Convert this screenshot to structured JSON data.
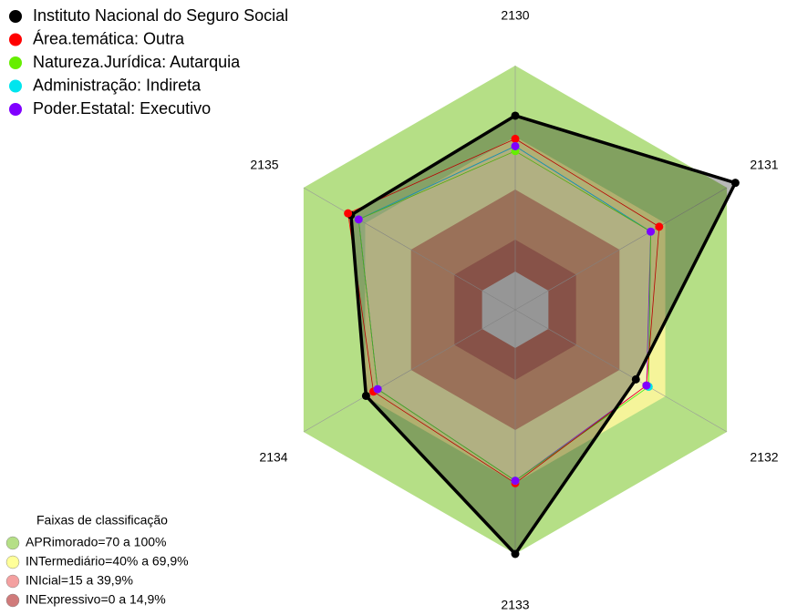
{
  "chart_data": {
    "type": "radar",
    "categories": [
      "2130",
      "2131",
      "2132",
      "2133",
      "2134",
      "2135"
    ],
    "rlim": [
      0,
      100
    ],
    "series": [
      {
        "name": "Instituto Nacional do Seguro Social",
        "color": "#000000",
        "values": [
          79.5,
          104,
          57,
          100,
          70.5,
          77.6
        ]
      },
      {
        "name": "Área.temática: Outra",
        "color": "#ff0000",
        "values": [
          70,
          68,
          62,
          71,
          67,
          79
        ]
      },
      {
        "name": "Natureza.Jurídica: Autarquia",
        "color": "#66ee00",
        "values": [
          65,
          64,
          63,
          70,
          65,
          74
        ]
      },
      {
        "name": "Administração: Indireta",
        "color": "#00e5ee",
        "values": [
          67,
          64,
          63,
          70,
          65,
          74
        ]
      },
      {
        "name": "Poder.Estatal: Executivo",
        "color": "#8000ff",
        "values": [
          67,
          64,
          62,
          70,
          65,
          74
        ]
      }
    ],
    "band_legend": {
      "title": "Faixas de classificação",
      "items": [
        {
          "label": "APRimorado=70 a 100%",
          "color": "#b5df86"
        },
        {
          "label": "INTermediário=40% a 69,9%",
          "color": "#ffff99"
        },
        {
          "label": "INIcial=15 a 39,9%",
          "color": "#f4a0a0"
        },
        {
          "label": "INExpressivo=0 a 14,9%",
          "color": "#d07a7a"
        }
      ]
    }
  }
}
